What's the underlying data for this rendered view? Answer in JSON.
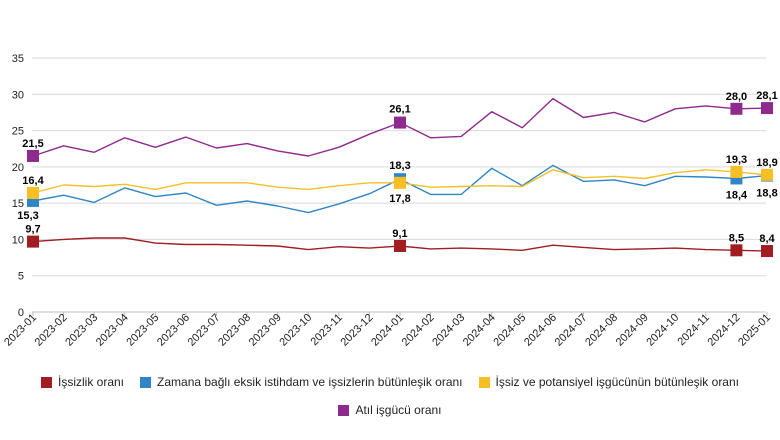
{
  "chart_data": {
    "type": "line",
    "categories": [
      "2023-01",
      "2023-02",
      "2023-03",
      "2023-04",
      "2023-05",
      "2023-06",
      "2023-07",
      "2023-08",
      "2023-09",
      "2023-10",
      "2023-11",
      "2023-12",
      "2024-01",
      "2024-02",
      "2024-03",
      "2024-04",
      "2024-05",
      "2024-06",
      "2024-07",
      "2024-08",
      "2024-09",
      "2024-10",
      "2024-11",
      "2024-12",
      "2025-01"
    ],
    "ylim": [
      0,
      35
    ],
    "yticks": [
      0,
      5,
      10,
      15,
      20,
      25,
      30,
      35
    ],
    "grid": true,
    "legend_position": "bottom",
    "series": [
      {
        "name": "İşsizlik oranı",
        "color": "#a11d21",
        "values": [
          9.7,
          10.0,
          10.2,
          10.2,
          9.5,
          9.3,
          9.3,
          9.2,
          9.1,
          8.6,
          9.0,
          8.8,
          9.1,
          8.7,
          8.8,
          8.7,
          8.5,
          9.2,
          8.9,
          8.6,
          8.7,
          8.8,
          8.6,
          8.5,
          8.4
        ],
        "markers": [
          0,
          12,
          23,
          24
        ],
        "labels": {
          "0": "9,7",
          "12": "9,1",
          "23": "8,5",
          "24": "8,4"
        }
      },
      {
        "name": "Zamana bağlı eksik istihdam ve işsizlerin bütünleşik oranı",
        "color": "#2f86c6",
        "values": [
          15.3,
          16.1,
          15.1,
          17.1,
          15.9,
          16.4,
          14.7,
          15.3,
          14.6,
          13.7,
          14.9,
          16.3,
          18.3,
          16.2,
          16.2,
          19.8,
          17.4,
          20.2,
          18.0,
          18.2,
          17.4,
          18.7,
          18.6,
          18.4,
          18.8
        ],
        "markers": [
          0,
          12,
          23,
          24
        ],
        "labels": {
          "0": "15,3",
          "12": "18,3",
          "23": "18,4",
          "24": "18,8"
        }
      },
      {
        "name": "İşsiz ve potansiyel işgücünün bütünleşik oranı",
        "color": "#f6bf26",
        "values": [
          16.4,
          17.5,
          17.3,
          17.6,
          16.9,
          17.8,
          17.8,
          17.8,
          17.2,
          16.9,
          17.4,
          17.8,
          17.8,
          17.2,
          17.3,
          17.4,
          17.3,
          19.6,
          18.5,
          18.7,
          18.4,
          19.2,
          19.6,
          19.3,
          18.9
        ],
        "markers": [
          0,
          12,
          23,
          24
        ],
        "labels": {
          "0": "16,4",
          "12": "17,8",
          "23": "19,3",
          "24": "18,9"
        }
      },
      {
        "name": "Atıl işgücü oranı",
        "color": "#8e2a8e",
        "values": [
          21.5,
          22.9,
          22.0,
          24.0,
          22.7,
          24.1,
          22.6,
          23.2,
          22.2,
          21.5,
          22.7,
          24.5,
          26.1,
          24.0,
          24.2,
          27.6,
          25.4,
          29.4,
          26.8,
          27.5,
          26.2,
          28.0,
          28.4,
          28.0,
          28.1
        ],
        "markers": [
          0,
          12,
          23,
          24
        ],
        "labels": {
          "0": "21,5",
          "12": "26,1",
          "23": "28,0",
          "24": "28,1"
        }
      }
    ]
  }
}
